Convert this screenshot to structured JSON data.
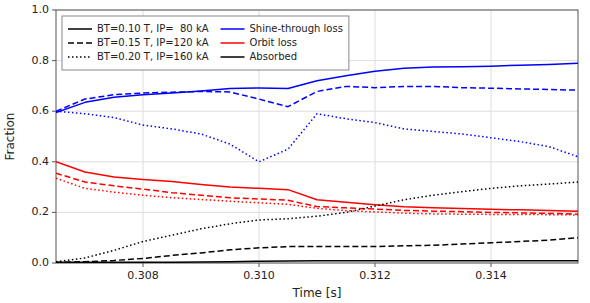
{
  "chart_data": {
    "type": "line",
    "xlabel": "Time [s]",
    "ylabel": "Fraction",
    "xlim": [
      0.3065,
      0.3155
    ],
    "ylim": [
      0.0,
      1.0
    ],
    "xticks": [
      0.308,
      {
        "value": 0.31,
        "label": "0.310"
      },
      0.312,
      0.314
    ],
    "yticks": [
      {
        "value": 0.0,
        "label": "0.0"
      },
      0.2,
      0.4,
      0.6,
      0.8,
      {
        "value": 1.0,
        "label": "1.0"
      }
    ],
    "grid": true,
    "legend": "upper left",
    "x": [
      0.3065,
      0.307,
      0.3075,
      0.308,
      0.3085,
      0.309,
      0.3095,
      0.31,
      0.3105,
      0.311,
      0.3115,
      0.312,
      0.3125,
      0.313,
      0.3135,
      0.314,
      0.3145,
      0.315,
      0.3155
    ],
    "series": [
      {
        "color": "#0000FF",
        "line_style": "solid",
        "values": [
          0.595,
          0.635,
          0.655,
          0.665,
          0.672,
          0.68,
          0.69,
          0.692,
          0.69,
          0.72,
          0.74,
          0.758,
          0.77,
          0.775,
          0.776,
          0.778,
          0.782,
          0.785,
          0.79
        ]
      },
      {
        "color": "#0000FF",
        "line_style": "dashed",
        "values": [
          0.6,
          0.648,
          0.665,
          0.672,
          0.675,
          0.678,
          0.676,
          0.648,
          0.618,
          0.678,
          0.698,
          0.693,
          0.698,
          0.698,
          0.693,
          0.691,
          0.688,
          0.686,
          0.683
        ]
      },
      {
        "color": "#0000FF",
        "line_style": "dotted",
        "values": [
          0.6,
          0.59,
          0.575,
          0.545,
          0.53,
          0.51,
          0.47,
          0.4,
          0.45,
          0.59,
          0.57,
          0.555,
          0.53,
          0.52,
          0.51,
          0.495,
          0.48,
          0.46,
          0.42
        ]
      },
      {
        "color": "#FF0000",
        "line_style": "solid",
        "values": [
          0.4,
          0.36,
          0.34,
          0.33,
          0.322,
          0.31,
          0.3,
          0.295,
          0.29,
          0.25,
          0.24,
          0.23,
          0.222,
          0.218,
          0.215,
          0.212,
          0.21,
          0.208,
          0.205
        ]
      },
      {
        "color": "#FF0000",
        "line_style": "dashed",
        "values": [
          0.355,
          0.32,
          0.305,
          0.292,
          0.278,
          0.268,
          0.258,
          0.253,
          0.248,
          0.223,
          0.218,
          0.213,
          0.208,
          0.205,
          0.203,
          0.2,
          0.198,
          0.196,
          0.193
        ]
      },
      {
        "color": "#FF0000",
        "line_style": "dotted",
        "values": [
          0.335,
          0.295,
          0.28,
          0.268,
          0.258,
          0.251,
          0.244,
          0.238,
          0.232,
          0.216,
          0.207,
          0.202,
          0.197,
          0.194,
          0.193,
          0.192,
          0.192,
          0.191,
          0.19
        ]
      },
      {
        "color": "#000000",
        "line_style": "solid",
        "values": [
          0.003,
          0.003,
          0.003,
          0.003,
          0.003,
          0.004,
          0.005,
          0.007,
          0.008,
          0.009,
          0.009,
          0.009,
          0.009,
          0.009,
          0.009,
          0.009,
          0.009,
          0.009,
          0.009
        ]
      },
      {
        "color": "#000000",
        "line_style": "dashed",
        "values": [
          0.002,
          0.005,
          0.01,
          0.018,
          0.03,
          0.04,
          0.052,
          0.06,
          0.065,
          0.065,
          0.065,
          0.065,
          0.068,
          0.07,
          0.075,
          0.08,
          0.085,
          0.09,
          0.1
        ]
      },
      {
        "color": "#000000",
        "line_style": "dotted",
        "values": [
          0.005,
          0.02,
          0.05,
          0.085,
          0.11,
          0.135,
          0.155,
          0.17,
          0.175,
          0.185,
          0.2,
          0.225,
          0.25,
          0.268,
          0.282,
          0.295,
          0.305,
          0.312,
          0.32
        ]
      }
    ],
    "legend_entries": [
      {
        "name": "BT=0.10 T, IP=  80 kA",
        "color": "#000000",
        "line_style": "solid"
      },
      {
        "name": "BT=0.15 T, IP=120 kA",
        "color": "#000000",
        "line_style": "dashed"
      },
      {
        "name": "BT=0.20 T, IP=160 kA",
        "color": "#000000",
        "line_style": "dotted"
      },
      {
        "name": "Shine-through loss",
        "color": "#0000FF",
        "line_style": "solid"
      },
      {
        "name": "Orbit loss",
        "color": "#FF0000",
        "line_style": "solid"
      },
      {
        "name": "Absorbed",
        "color": "#000000",
        "line_style": "solid"
      }
    ]
  }
}
